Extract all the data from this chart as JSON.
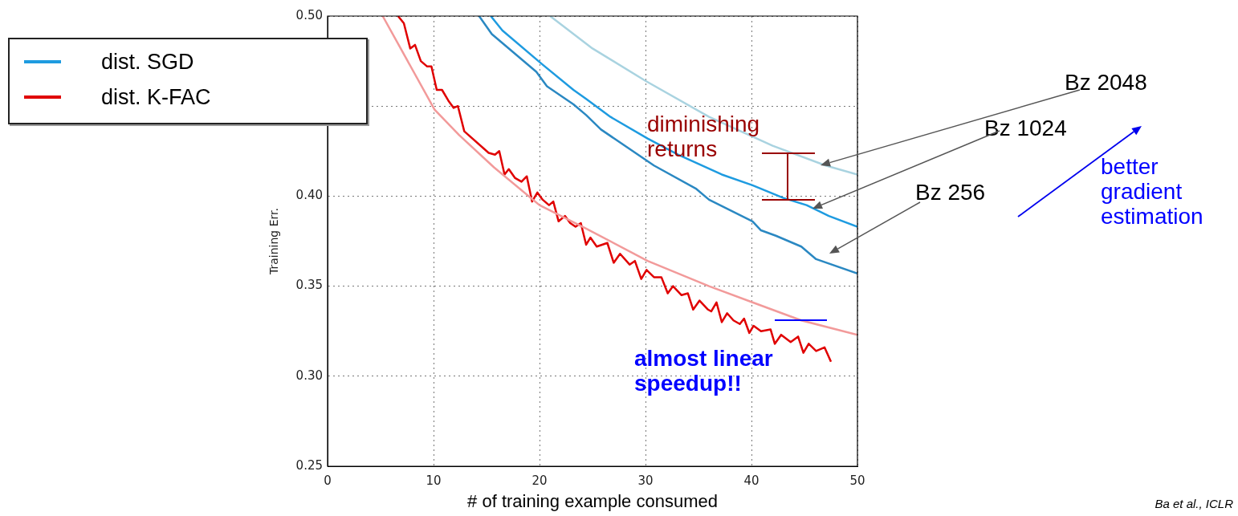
{
  "chart_data": {
    "type": "line",
    "xlabel": "# of training example consumed",
    "ylabel": "Training Err.",
    "xlim": [
      0,
      50
    ],
    "xticks": [
      0,
      10,
      20,
      30,
      40,
      50
    ],
    "ylim": [
      0.25,
      0.5
    ],
    "yticks": [
      {
        "value": 0.25,
        "label": "0.25"
      },
      {
        "value": 0.3,
        "label": "0.30"
      },
      {
        "value": 0.35,
        "label": "0.35"
      },
      {
        "value": 0.4,
        "label": "0.40"
      },
      {
        "value": 0.45,
        "label": null
      },
      {
        "value": 0.5,
        "label": "0.50"
      }
    ],
    "grid": true,
    "legend": "left",
    "marker": "none",
    "series": [
      {
        "color": "#a9d3e0",
        "x": [
          21,
          25,
          30,
          36,
          42,
          47,
          50
        ],
        "values": [
          0.5,
          0.482,
          0.464,
          0.444,
          0.428,
          0.417,
          0.412
        ]
      },
      {
        "name": "dist. SGD",
        "color": "#1e9be0",
        "x": [
          15.4,
          16.5,
          20.3,
          23.2,
          24.4,
          26.7,
          30.2,
          33.1,
          37.2,
          40.1,
          43,
          45.2,
          47.3,
          50
        ],
        "values": [
          0.5,
          0.492,
          0.473,
          0.459,
          0.454,
          0.444,
          0.432,
          0.423,
          0.412,
          0.406,
          0.399,
          0.395,
          0.389,
          0.383
        ]
      },
      {
        "color": "#2a88c2",
        "x": [
          14.3,
          15.5,
          19.7,
          20.7,
          23.2,
          24.4,
          25.8,
          30.8,
          34.8,
          36,
          40.1,
          40.9,
          42.3,
          44.7,
          46.1,
          50
        ],
        "values": [
          0.5,
          0.49,
          0.469,
          0.461,
          0.451,
          0.445,
          0.437,
          0.417,
          0.404,
          0.398,
          0.386,
          0.381,
          0.378,
          0.372,
          0.365,
          0.357
        ]
      },
      {
        "color": "#f29a9a",
        "x": [
          5.2,
          6.9,
          10.1,
          12.4,
          15.7,
          20,
          24.4,
          30.2,
          36,
          40.1,
          44.7,
          50
        ],
        "values": [
          0.5,
          0.482,
          0.448,
          0.434,
          0.416,
          0.395,
          0.382,
          0.364,
          0.35,
          0.341,
          0.331,
          0.323
        ]
      },
      {
        "name": "dist. K-FAC",
        "color": "#e00000",
        "x": [
          6.65,
          7.2,
          7.8,
          8.25,
          8.8,
          9.4,
          9.8,
          10.3,
          10.8,
          11.4,
          11.9,
          12.3,
          12.9,
          15.2,
          15.8,
          16.2,
          16.7,
          17.1,
          17.7,
          18.3,
          18.8,
          19.3,
          19.8,
          20.3,
          20.9,
          21.3,
          21.8,
          22.4,
          22.9,
          23.4,
          23.9,
          24.4,
          24.8,
          25.4,
          26.4,
          27,
          27.6,
          28.5,
          29,
          29.6,
          30.1,
          30.8,
          31.5,
          32.1,
          32.6,
          33.4,
          34,
          34.5,
          35.1,
          35.9,
          36.2,
          36.7,
          37.2,
          37.7,
          38.3,
          38.9,
          39.3,
          39.8,
          40.2,
          40.9,
          41.8,
          42.2,
          42.8,
          43.7,
          44.4,
          44.9,
          45.4,
          46.1,
          46.9,
          47.5
        ],
        "values": [
          0.5,
          0.496,
          0.482,
          0.484,
          0.475,
          0.472,
          0.472,
          0.459,
          0.459,
          0.453,
          0.449,
          0.45,
          0.436,
          0.424,
          0.423,
          0.425,
          0.412,
          0.415,
          0.41,
          0.408,
          0.411,
          0.397,
          0.402,
          0.398,
          0.395,
          0.397,
          0.386,
          0.389,
          0.385,
          0.383,
          0.385,
          0.373,
          0.377,
          0.372,
          0.374,
          0.363,
          0.368,
          0.362,
          0.364,
          0.354,
          0.359,
          0.355,
          0.355,
          0.346,
          0.35,
          0.345,
          0.346,
          0.337,
          0.342,
          0.337,
          0.336,
          0.341,
          0.33,
          0.335,
          0.331,
          0.329,
          0.332,
          0.324,
          0.328,
          0.325,
          0.326,
          0.318,
          0.323,
          0.319,
          0.322,
          0.313,
          0.318,
          0.314,
          0.316,
          0.308
        ]
      }
    ],
    "annotations": [
      "diminishing returns",
      "Bz 2048",
      "Bz 1024",
      "Bz 256",
      "better gradient estimation",
      "almost linear speedup!!",
      "Ba et al., ICLR"
    ]
  }
}
